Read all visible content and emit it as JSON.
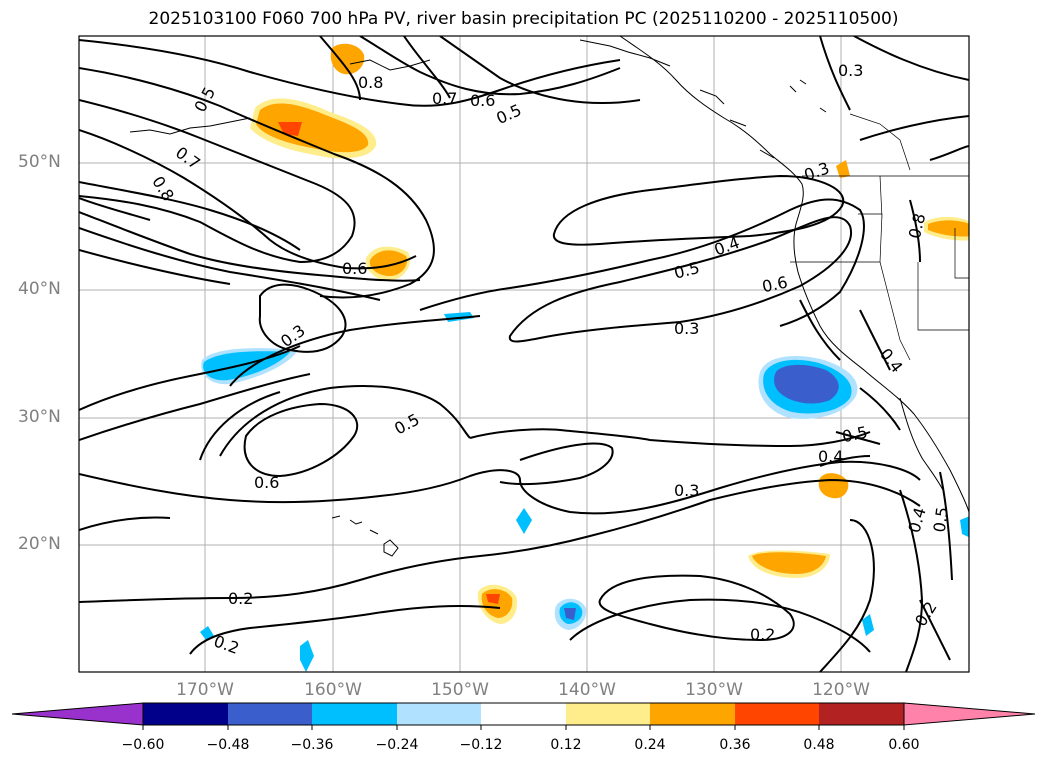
{
  "title": "2025103100 F060 700 hPa PV, river basin precipitation PC (2025110200 - 2025110500)",
  "lat_labels": [
    "50°N",
    "40°N",
    "30°N",
    "20°N"
  ],
  "lon_labels": [
    "170°W",
    "160°W",
    "150°W",
    "140°W",
    "130°W",
    "120°W"
  ],
  "colorbar": {
    "ticks": [
      "−0.60",
      "−0.48",
      "−0.36",
      "−0.24",
      "−0.12",
      "0.12",
      "0.24",
      "0.36",
      "0.48",
      "0.60"
    ],
    "colors": [
      "#9932cc",
      "#00008b",
      "#3a5fcd",
      "#00bfff",
      "#b0e2ff",
      "#ffffff",
      "#ffec8b",
      "#ffa500",
      "#ff4500",
      "#b22222",
      "#ff82ab"
    ]
  },
  "contour_labels": {
    "c1": "0.5",
    "c2": "0.8",
    "c3": "0.7",
    "c4": "0.6",
    "c5": "0.5",
    "c6": "0.3",
    "c7": "0.7",
    "c8": "0.8",
    "c9": "0.6",
    "c10": "0.3",
    "c11": "0.3",
    "c12": "0.8",
    "c13": "0.4",
    "c14": "0.5",
    "c15": "0.6",
    "c16": "0.3",
    "c17": "0.4",
    "c18": "0.5",
    "c19": "0.5",
    "c20": "0.4",
    "c21": "0.6",
    "c22": "0.3",
    "c23": "0.4",
    "c24": "0.5",
    "c25": "0.2",
    "c26": "0.2",
    "c27": "0.2",
    "c28": "0.2"
  }
}
